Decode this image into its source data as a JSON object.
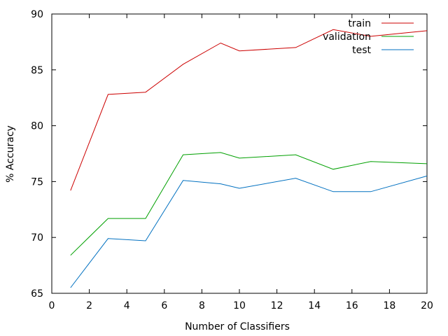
{
  "chart_data": {
    "type": "line",
    "title": "",
    "xlabel": "Number of Classifiers",
    "ylabel": "% Accuracy",
    "xlim": [
      0,
      20
    ],
    "ylim": [
      65,
      90
    ],
    "xticks": [
      "0",
      "2",
      "4",
      "6",
      "8",
      "10",
      "12",
      "14",
      "16",
      "18",
      "20"
    ],
    "yticks": [
      "65",
      "70",
      "75",
      "80",
      "85",
      "90"
    ],
    "grid": false,
    "legend_position": "top-right",
    "x": [
      1,
      3,
      5,
      7,
      9,
      10,
      13,
      15,
      17,
      20
    ],
    "series": [
      {
        "name": "train",
        "color": "#cc0000",
        "values": [
          74.2,
          82.8,
          83.0,
          85.5,
          87.4,
          86.7,
          87.0,
          88.6,
          88.0,
          88.5
        ]
      },
      {
        "name": "validation",
        "color": "#00a000",
        "values": [
          68.4,
          71.7,
          71.7,
          77.4,
          77.6,
          77.1,
          77.4,
          76.1,
          76.8,
          76.6
        ]
      },
      {
        "name": "test",
        "color": "#0070c0",
        "values": [
          65.5,
          69.9,
          69.7,
          75.1,
          74.8,
          74.4,
          75.3,
          74.1,
          74.1,
          75.5
        ]
      }
    ]
  }
}
